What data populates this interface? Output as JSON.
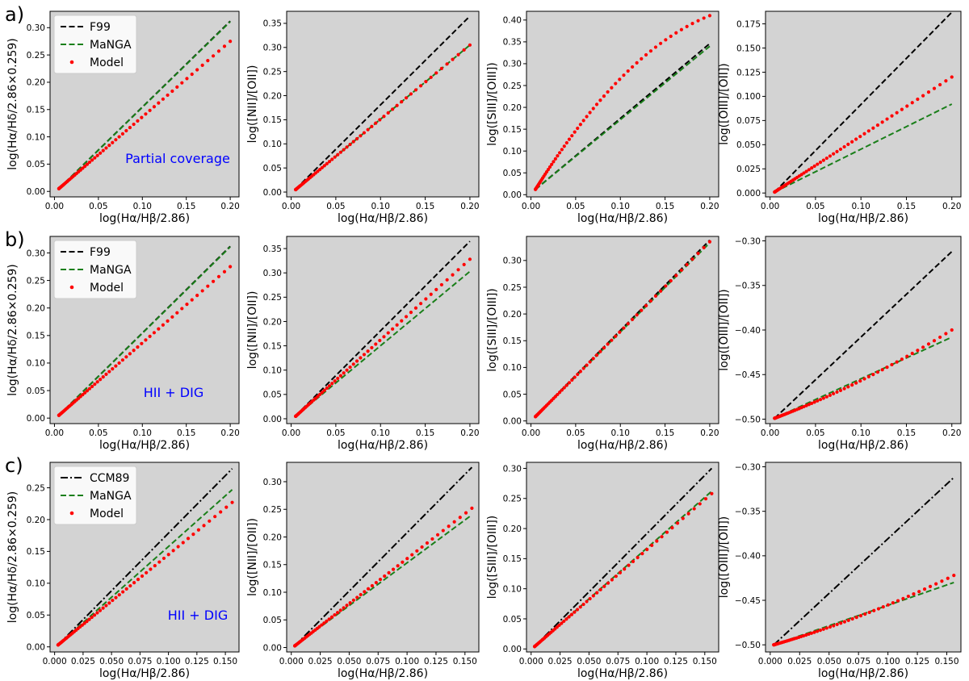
{
  "colors": {
    "axes_bg": "#d3d3d3",
    "ref": "#000000",
    "manga": "#1a7f1a",
    "model": "#ff0000",
    "annotation": "#0000ff",
    "legend_bg": "#ffffff"
  },
  "rows": [
    {
      "label": "a)",
      "annotation": "Partial coverage",
      "legend": [
        "F99",
        "MaNGA",
        "Model"
      ],
      "ref_style": "dash"
    },
    {
      "label": "b)",
      "annotation": "HII + DIG",
      "legend": [
        "F99",
        "MaNGA",
        "Model"
      ],
      "ref_style": "dash"
    },
    {
      "label": "c)",
      "annotation": "HII + DIG",
      "legend": [
        "CCM89",
        "MaNGA",
        "Model"
      ],
      "ref_style": "dashdot"
    }
  ],
  "chart_data": [
    {
      "type": "line",
      "row": 0,
      "col": 0,
      "xlabel": "log(Hα/Hβ/2.86)",
      "ylabel": "log(Hα/Hδ/2.86×0.259)",
      "xlim": [
        -0.005,
        0.21
      ],
      "ylim": [
        -0.01,
        0.33
      ],
      "xticks": [
        0.0,
        0.05,
        0.1,
        0.15,
        0.2
      ],
      "xticklabels": [
        "0.00",
        "0.05",
        "0.10",
        "0.15",
        "0.20"
      ],
      "yticks": [
        0.0,
        0.05,
        0.1,
        0.15,
        0.2,
        0.25,
        0.3
      ],
      "yticklabels": [
        "0.00",
        "0.05",
        "0.10",
        "0.15",
        "0.20",
        "0.25",
        "0.30"
      ],
      "ref": {
        "name": "F99",
        "x": [
          0.005,
          0.2
        ],
        "y": [
          0.005,
          0.312
        ]
      },
      "manga": {
        "name": "MaNGA",
        "x": [
          0.005,
          0.2
        ],
        "y": [
          0.005,
          0.311
        ]
      },
      "model": {
        "name": "Model",
        "x0": 0.005,
        "y0": 0.005,
        "x1": 0.2,
        "y1": 0.275,
        "n": 60,
        "curv": 0.0
      }
    },
    {
      "type": "line",
      "row": 0,
      "col": 1,
      "xlabel": "log(Hα/Hβ/2.86)",
      "ylabel": "log([NII]/[OII])",
      "xlim": [
        -0.005,
        0.21
      ],
      "ylim": [
        -0.01,
        0.375
      ],
      "xticks": [
        0.0,
        0.05,
        0.1,
        0.15,
        0.2
      ],
      "xticklabels": [
        "0.00",
        "0.05",
        "0.10",
        "0.15",
        "0.20"
      ],
      "yticks": [
        0.0,
        0.05,
        0.1,
        0.15,
        0.2,
        0.25,
        0.3,
        0.35
      ],
      "yticklabels": [
        "0.00",
        "0.05",
        "0.10",
        "0.15",
        "0.20",
        "0.25",
        "0.30",
        "0.35"
      ],
      "ref": {
        "name": "F99",
        "x": [
          0.005,
          0.2
        ],
        "y": [
          0.006,
          0.365
        ]
      },
      "manga": {
        "name": "MaNGA",
        "x": [
          0.005,
          0.2
        ],
        "y": [
          0.005,
          0.305
        ]
      },
      "model": {
        "name": "Model",
        "x0": 0.005,
        "y0": 0.005,
        "x1": 0.2,
        "y1": 0.305,
        "n": 60,
        "curv": 0.0
      }
    },
    {
      "type": "line",
      "row": 0,
      "col": 2,
      "xlabel": "log(Hα/Hβ/2.86)",
      "ylabel": "log([SIII]/[OIII])",
      "xlim": [
        -0.005,
        0.21
      ],
      "ylim": [
        -0.005,
        0.42
      ],
      "xticks": [
        0.0,
        0.05,
        0.1,
        0.15,
        0.2
      ],
      "xticklabels": [
        "0.00",
        "0.05",
        "0.10",
        "0.15",
        "0.20"
      ],
      "yticks": [
        0.0,
        0.05,
        0.1,
        0.15,
        0.2,
        0.25,
        0.3,
        0.35,
        0.4
      ],
      "yticklabels": [
        "0.00",
        "0.05",
        "0.10",
        "0.15",
        "0.20",
        "0.25",
        "0.30",
        "0.35",
        "0.40"
      ],
      "ref": {
        "name": "F99",
        "x": [
          0.005,
          0.2
        ],
        "y": [
          0.012,
          0.346
        ]
      },
      "manga": {
        "name": "MaNGA",
        "x": [
          0.005,
          0.2
        ],
        "y": [
          0.012,
          0.34
        ]
      },
      "model": {
        "name": "Model",
        "x0": 0.005,
        "y0": 0.012,
        "x1": 0.2,
        "y1": 0.41,
        "n": 60,
        "curv": 0.06
      }
    },
    {
      "type": "line",
      "row": 0,
      "col": 3,
      "xlabel": "log(Hα/Hβ/2.86)",
      "ylabel": "log([OIII]/[OII])",
      "xlim": [
        -0.005,
        0.21
      ],
      "ylim": [
        -0.004,
        0.188
      ],
      "xticks": [
        0.0,
        0.05,
        0.1,
        0.15,
        0.2
      ],
      "xticklabels": [
        "0.00",
        "0.05",
        "0.10",
        "0.15",
        "0.20"
      ],
      "yticks": [
        0.0,
        0.025,
        0.05,
        0.075,
        0.1,
        0.125,
        0.15,
        0.175
      ],
      "yticklabels": [
        "0.000",
        "0.025",
        "0.050",
        "0.075",
        "0.100",
        "0.125",
        "0.150",
        "0.175"
      ],
      "ref": {
        "name": "F99",
        "x": [
          0.005,
          0.2
        ],
        "y": [
          0.001,
          0.187
        ]
      },
      "manga": {
        "name": "MaNGA",
        "x": [
          0.005,
          0.2
        ],
        "y": [
          0.001,
          0.092
        ]
      },
      "model": {
        "name": "Model",
        "x0": 0.005,
        "y0": 0.001,
        "x1": 0.2,
        "y1": 0.12,
        "n": 60,
        "curv": 0.0
      }
    },
    {
      "type": "line",
      "row": 1,
      "col": 0,
      "xlabel": "log(Hα/Hβ/2.86)",
      "ylabel": "log(Hα/Hδ/2.86×0.259)",
      "xlim": [
        -0.005,
        0.21
      ],
      "ylim": [
        -0.01,
        0.33
      ],
      "xticks": [
        0.0,
        0.05,
        0.1,
        0.15,
        0.2
      ],
      "xticklabels": [
        "0.00",
        "0.05",
        "0.10",
        "0.15",
        "0.20"
      ],
      "yticks": [
        0.0,
        0.05,
        0.1,
        0.15,
        0.2,
        0.25,
        0.3
      ],
      "yticklabels": [
        "0.00",
        "0.05",
        "0.10",
        "0.15",
        "0.20",
        "0.25",
        "0.30"
      ],
      "ref": {
        "name": "F99",
        "x": [
          0.005,
          0.2
        ],
        "y": [
          0.005,
          0.312
        ]
      },
      "manga": {
        "name": "MaNGA",
        "x": [
          0.005,
          0.2
        ],
        "y": [
          0.005,
          0.311
        ]
      },
      "model": {
        "name": "Model",
        "x0": 0.005,
        "y0": 0.005,
        "x1": 0.2,
        "y1": 0.275,
        "n": 60,
        "curv": 0.0
      }
    },
    {
      "type": "line",
      "row": 1,
      "col": 1,
      "xlabel": "log(Hα/Hβ/2.86)",
      "ylabel": "log([NII]/[OII])",
      "xlim": [
        -0.005,
        0.21
      ],
      "ylim": [
        -0.01,
        0.375
      ],
      "xticks": [
        0.0,
        0.05,
        0.1,
        0.15,
        0.2
      ],
      "xticklabels": [
        "0.00",
        "0.05",
        "0.10",
        "0.15",
        "0.20"
      ],
      "yticks": [
        0.0,
        0.05,
        0.1,
        0.15,
        0.2,
        0.25,
        0.3,
        0.35
      ],
      "yticklabels": [
        "0.00",
        "0.05",
        "0.10",
        "0.15",
        "0.20",
        "0.25",
        "0.30",
        "0.35"
      ],
      "ref": {
        "name": "F99",
        "x": [
          0.005,
          0.2
        ],
        "y": [
          0.006,
          0.365
        ]
      },
      "manga": {
        "name": "MaNGA",
        "x": [
          0.005,
          0.2
        ],
        "y": [
          0.005,
          0.303
        ]
      },
      "model": {
        "name": "Model",
        "x0": 0.005,
        "y0": 0.005,
        "x1": 0.2,
        "y1": 0.328,
        "n": 60,
        "curv": 0.0
      }
    },
    {
      "type": "line",
      "row": 1,
      "col": 2,
      "xlabel": "log(Hα/Hβ/2.86)",
      "ylabel": "log([SIII]/[OIII])",
      "xlim": [
        -0.005,
        0.21
      ],
      "ylim": [
        -0.005,
        0.345
      ],
      "xticks": [
        0.0,
        0.05,
        0.1,
        0.15,
        0.2
      ],
      "xticklabels": [
        "0.00",
        "0.05",
        "0.10",
        "0.15",
        "0.20"
      ],
      "yticks": [
        0.0,
        0.05,
        0.1,
        0.15,
        0.2,
        0.25,
        0.3
      ],
      "yticklabels": [
        "0.00",
        "0.05",
        "0.10",
        "0.15",
        "0.20",
        "0.25",
        "0.30"
      ],
      "ref": {
        "name": "F99",
        "x": [
          0.005,
          0.2
        ],
        "y": [
          0.009,
          0.338
        ]
      },
      "manga": {
        "name": "MaNGA",
        "x": [
          0.005,
          0.2
        ],
        "y": [
          0.008,
          0.333
        ]
      },
      "model": {
        "name": "Model",
        "x0": 0.005,
        "y0": 0.008,
        "x1": 0.2,
        "y1": 0.335,
        "n": 60,
        "curv": 0.0
      }
    },
    {
      "type": "line",
      "row": 1,
      "col": 3,
      "xlabel": "log(Hα/Hβ/2.86)",
      "ylabel": "log([OIII]/[OII])",
      "xlim": [
        -0.005,
        0.21
      ],
      "ylim": [
        -0.505,
        -0.295
      ],
      "xticks": [
        0.0,
        0.05,
        0.1,
        0.15,
        0.2
      ],
      "xticklabels": [
        "0.00",
        "0.05",
        "0.10",
        "0.15",
        "0.20"
      ],
      "yticks": [
        -0.5,
        -0.45,
        -0.4,
        -0.35,
        -0.3
      ],
      "yticklabels": [
        "−0.50",
        "−0.45",
        "−0.40",
        "−0.35",
        "−0.30"
      ],
      "ref": {
        "name": "F99",
        "x": [
          0.005,
          0.2
        ],
        "y": [
          -0.499,
          -0.312
        ]
      },
      "manga": {
        "name": "MaNGA",
        "x": [
          0.005,
          0.2
        ],
        "y": [
          -0.499,
          -0.408
        ]
      },
      "model": {
        "name": "Model",
        "x0": 0.005,
        "y0": -0.499,
        "x1": 0.2,
        "y1": -0.4,
        "n": 60,
        "curv": -0.006
      }
    },
    {
      "type": "line",
      "row": 2,
      "col": 0,
      "xlabel": "log(Hα/Hβ/2.86)",
      "ylabel": "log(Hα/Hδ/2.86×0.259)",
      "xlim": [
        -0.004,
        0.162
      ],
      "ylim": [
        -0.008,
        0.29
      ],
      "xticks": [
        0.0,
        0.025,
        0.05,
        0.075,
        0.1,
        0.125,
        0.15
      ],
      "xticklabels": [
        "0.000",
        "0.025",
        "0.050",
        "0.075",
        "0.100",
        "0.125",
        "0.150"
      ],
      "yticks": [
        0.0,
        0.05,
        0.1,
        0.15,
        0.2,
        0.25
      ],
      "yticklabels": [
        "0.00",
        "0.05",
        "0.10",
        "0.15",
        "0.20",
        "0.25"
      ],
      "ref": {
        "name": "CCM89",
        "x": [
          0.003,
          0.156
        ],
        "y": [
          0.003,
          0.28
        ]
      },
      "manga": {
        "name": "MaNGA",
        "x": [
          0.003,
          0.156
        ],
        "y": [
          0.003,
          0.247
        ]
      },
      "model": {
        "name": "Model",
        "x0": 0.003,
        "y0": 0.003,
        "x1": 0.156,
        "y1": 0.227,
        "n": 60,
        "curv": 0.0
      }
    },
    {
      "type": "line",
      "row": 2,
      "col": 1,
      "xlabel": "log(Hα/Hβ/2.86)",
      "ylabel": "log([NII]/[OII])",
      "xlim": [
        -0.004,
        0.162
      ],
      "ylim": [
        -0.008,
        0.335
      ],
      "xticks": [
        0.0,
        0.025,
        0.05,
        0.075,
        0.1,
        0.125,
        0.15
      ],
      "xticklabels": [
        "0.000",
        "0.025",
        "0.050",
        "0.075",
        "0.100",
        "0.125",
        "0.150"
      ],
      "yticks": [
        0.0,
        0.05,
        0.1,
        0.15,
        0.2,
        0.25,
        0.3
      ],
      "yticklabels": [
        "0.00",
        "0.05",
        "0.10",
        "0.15",
        "0.20",
        "0.25",
        "0.30"
      ],
      "ref": {
        "name": "CCM89",
        "x": [
          0.003,
          0.156
        ],
        "y": [
          0.003,
          0.326
        ]
      },
      "manga": {
        "name": "MaNGA",
        "x": [
          0.003,
          0.156
        ],
        "y": [
          0.003,
          0.24
        ]
      },
      "model": {
        "name": "Model",
        "x0": 0.003,
        "y0": 0.003,
        "x1": 0.156,
        "y1": 0.252,
        "n": 60,
        "curv": 0.0
      }
    },
    {
      "type": "line",
      "row": 2,
      "col": 2,
      "xlabel": "log(Hα/Hβ/2.86)",
      "ylabel": "log([SIII]/[OIII])",
      "xlim": [
        -0.004,
        0.162
      ],
      "ylim": [
        -0.005,
        0.31
      ],
      "xticks": [
        0.0,
        0.025,
        0.05,
        0.075,
        0.1,
        0.125,
        0.15
      ],
      "xticklabels": [
        "0.000",
        "0.025",
        "0.050",
        "0.075",
        "0.100",
        "0.125",
        "0.150"
      ],
      "yticks": [
        0.0,
        0.05,
        0.1,
        0.15,
        0.2,
        0.25,
        0.3
      ],
      "yticklabels": [
        "0.00",
        "0.05",
        "0.10",
        "0.15",
        "0.20",
        "0.25",
        "0.30"
      ],
      "ref": {
        "name": "CCM89",
        "x": [
          0.003,
          0.156
        ],
        "y": [
          0.004,
          0.3
        ]
      },
      "manga": {
        "name": "MaNGA",
        "x": [
          0.003,
          0.156
        ],
        "y": [
          0.004,
          0.262
        ]
      },
      "model": {
        "name": "Model",
        "x0": 0.003,
        "y0": 0.004,
        "x1": 0.156,
        "y1": 0.258,
        "n": 60,
        "curv": 0.0
      }
    },
    {
      "type": "line",
      "row": 2,
      "col": 3,
      "xlabel": "log(Hα/Hβ/2.86)",
      "ylabel": "log([OIII]/[OII])",
      "xlim": [
        -0.004,
        0.162
      ],
      "ylim": [
        -0.508,
        -0.295
      ],
      "xticks": [
        0.0,
        0.025,
        0.05,
        0.075,
        0.1,
        0.125,
        0.15
      ],
      "xticklabels": [
        "0.000",
        "0.025",
        "0.050",
        "0.075",
        "0.100",
        "0.125",
        "0.150"
      ],
      "yticks": [
        -0.5,
        -0.45,
        -0.4,
        -0.35,
        -0.3
      ],
      "yticklabels": [
        "−0.50",
        "−0.45",
        "−0.40",
        "−0.35",
        "−0.30"
      ],
      "ref": {
        "name": "CCM89",
        "x": [
          0.003,
          0.156
        ],
        "y": [
          -0.5,
          -0.312
        ]
      },
      "manga": {
        "name": "MaNGA",
        "x": [
          0.003,
          0.156
        ],
        "y": [
          -0.5,
          -0.43
        ]
      },
      "model": {
        "name": "Model",
        "x0": 0.003,
        "y0": -0.5,
        "x1": 0.156,
        "y1": -0.422,
        "n": 60,
        "curv": -0.005
      }
    }
  ]
}
